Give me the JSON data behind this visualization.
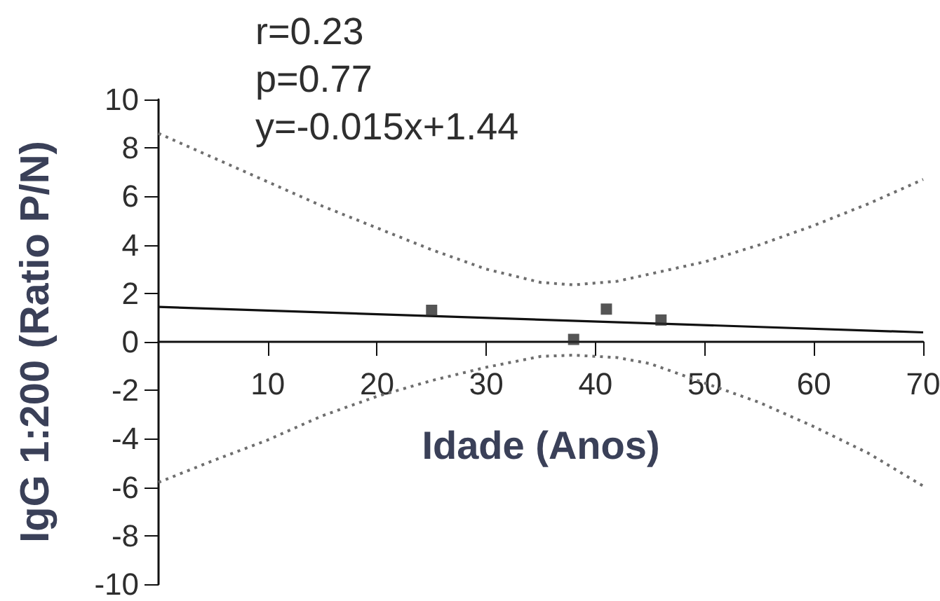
{
  "chart_data": {
    "type": "scatter",
    "xlabel": "Idade (Anos)",
    "ylabel": "IgG 1:200 (Ratio P/N)",
    "annotations": [
      "r=0.23",
      "p=0.77",
      "y=-0.015x+1.44"
    ],
    "xlim": [
      0,
      70
    ],
    "xticks": [
      10,
      20,
      30,
      40,
      50,
      60,
      70
    ],
    "ylim": [
      -10,
      10
    ],
    "yticks": [
      -10,
      -8,
      -6,
      -4,
      -2,
      0,
      2,
      4,
      6,
      8,
      10
    ],
    "grid": false,
    "series": [
      {
        "color": "#2b2b2b",
        "marker": "square",
        "x": [
          25,
          38,
          41,
          46
        ],
        "values": [
          1.3,
          0.1,
          1.35,
          0.9
        ]
      },
      {
        "type": "line",
        "color": "#111111",
        "marker": "none",
        "line_style": "solid",
        "x": [
          0,
          70
        ],
        "values": [
          1.44,
          0.39
        ]
      },
      {
        "type": "line",
        "color": "#6e6e6e",
        "marker": "none",
        "line_style": "dotted",
        "x": [
          0,
          5,
          10,
          15,
          20,
          25,
          30,
          35,
          38,
          42,
          45,
          50,
          55,
          60,
          65,
          70
        ],
        "values": [
          8.6,
          7.6,
          6.6,
          5.6,
          4.7,
          3.8,
          3.0,
          2.45,
          2.35,
          2.5,
          2.8,
          3.3,
          4.0,
          4.8,
          5.7,
          6.7
        ]
      },
      {
        "type": "line",
        "color": "#6e6e6e",
        "marker": "none",
        "line_style": "dotted",
        "x": [
          0,
          5,
          10,
          15,
          20,
          25,
          30,
          35,
          38,
          42,
          45,
          50,
          55,
          60,
          65,
          70
        ],
        "values": [
          -5.8,
          -4.9,
          -4.05,
          -3.05,
          -2.25,
          -1.6,
          -1.05,
          -0.6,
          -0.55,
          -0.65,
          -0.9,
          -1.7,
          -2.5,
          -3.5,
          -4.6,
          -5.95
        ]
      }
    ]
  }
}
